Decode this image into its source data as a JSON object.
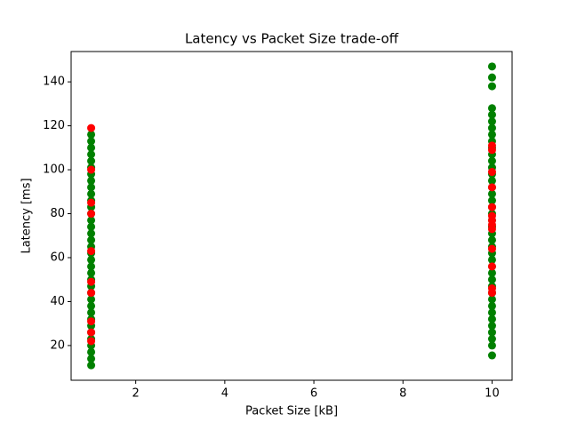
{
  "chart_data": {
    "type": "scatter",
    "title": "Latency vs Packet Size trade-off",
    "x_label": "Packet Size [kB]",
    "y_label": "Latency [ms]",
    "xlim": [
      0.55,
      10.45
    ],
    "xticks": [
      2,
      4,
      6,
      8,
      10
    ],
    "ylim": [
      4.2,
      153.8
    ],
    "yticks": [
      20,
      40,
      60,
      80,
      100,
      120,
      140
    ],
    "series": [
      {
        "color": "green",
        "x": [
          1,
          1,
          1,
          1,
          1,
          1,
          1,
          1,
          1,
          1,
          1,
          1,
          1,
          1,
          1,
          1,
          1,
          1,
          1,
          1,
          1,
          1,
          1,
          1,
          1,
          1,
          1,
          1,
          1,
          1,
          1,
          1,
          1,
          1,
          1,
          1,
          10,
          10,
          10,
          10,
          10,
          10,
          10,
          10,
          10,
          10,
          10,
          10,
          10,
          10,
          10,
          10,
          10,
          10,
          10,
          10,
          10,
          10,
          10,
          10,
          10,
          10,
          10,
          10,
          10,
          10,
          10,
          10,
          10,
          10,
          10,
          10,
          10,
          10,
          10,
          10,
          10
        ],
        "values": [
          11,
          14,
          17,
          20,
          23,
          26,
          29,
          32,
          35,
          38,
          41,
          44,
          47,
          50,
          53,
          56,
          59,
          62,
          65,
          68,
          71,
          74,
          77,
          80,
          83,
          86,
          89,
          92,
          95,
          98,
          101,
          104,
          107,
          110,
          113,
          116,
          15.5,
          20,
          23,
          26,
          29,
          32,
          35,
          38,
          41,
          44,
          47,
          50,
          53,
          56,
          59,
          62,
          65,
          68,
          71,
          74,
          77,
          80,
          83,
          86,
          89,
          92,
          95,
          98,
          101,
          104,
          107,
          110,
          113,
          116,
          119,
          122,
          125,
          128,
          138,
          142,
          147
        ]
      },
      {
        "color": "red",
        "x": [
          1,
          1,
          1,
          1,
          1,
          1,
          1,
          1,
          1,
          1,
          10,
          10,
          10,
          10,
          10,
          10,
          10,
          10,
          10,
          10,
          10,
          10,
          10
        ],
        "values": [
          119,
          100,
          85,
          80,
          63,
          49,
          44,
          31,
          26,
          22,
          111,
          109,
          99,
          92,
          83,
          79,
          77,
          75,
          73,
          64,
          56,
          46,
          44
        ]
      }
    ]
  }
}
